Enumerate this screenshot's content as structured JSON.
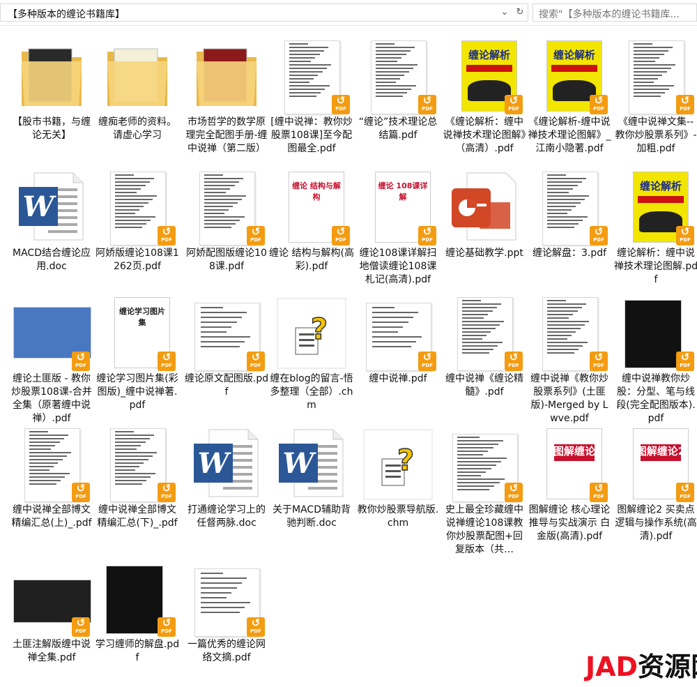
{
  "address_bar": {
    "path": "【多种版本的缠论书籍库】",
    "dropdown_icon": "chevron-down-icon",
    "refresh_icon": "refresh-icon"
  },
  "search": {
    "placeholder": "搜索\"【多种版本的缠论书籍库..."
  },
  "files": [
    {
      "name": "【股市书籍，与缠论无关】",
      "type": "folder"
    },
    {
      "name": "缠痴老师的资料。请虚心学习",
      "type": "folder"
    },
    {
      "name": "市场哲学的数学原理完全配图手册-缠中说禅（第二版）",
      "type": "folder"
    },
    {
      "name": "[缠中说禅：教你炒股票108课]至今配图最全.pdf",
      "type": "pdf"
    },
    {
      "name": "“缠论”技术理论总结篇.pdf",
      "type": "pdf"
    },
    {
      "name": "《缠论解析：缠中说禅技术理论图解》（高清）.pdf",
      "type": "pdf",
      "cover_title": "缠论解析"
    },
    {
      "name": "《缠论解析-缠中说禅技术理论图解》_江南小隐著.pdf",
      "type": "pdf",
      "cover_title": "缠论解析"
    },
    {
      "name": "《缠中说禅文集--教你炒股票系列》-加粗.pdf",
      "type": "pdf"
    },
    {
      "name": "MACD结合缠论应用.doc",
      "type": "doc"
    },
    {
      "name": "阿娇版缠论108课1262页.pdf",
      "type": "pdf"
    },
    {
      "name": "阿娇配图版缠论108课.pdf",
      "type": "pdf"
    },
    {
      "name": "缠论 结构与解构(高彩).pdf",
      "type": "pdf",
      "cover_title": "缠论 结构与解构"
    },
    {
      "name": "缠论108课详解扫地僧读缠论108课札记(高清).pdf",
      "type": "pdf",
      "cover_title": "缠论 108课详解"
    },
    {
      "name": "缠论基础教学.ppt",
      "type": "ppt"
    },
    {
      "name": "缠论解盘：3.pdf",
      "type": "pdf"
    },
    {
      "name": "缠论解析：缠中说禅技术理论图解.pdf",
      "type": "pdf",
      "cover_title": "缠论解析"
    },
    {
      "name": "缠论土匪版 - 教你炒股票108课-合并全集（原著缠中说禅）.pdf",
      "type": "pdf"
    },
    {
      "name": "缠论学习图片集(彩图版)_缠中说禅著.pdf",
      "type": "pdf",
      "cover_title": "缠论学习图片集"
    },
    {
      "name": "缠论原文配图版.pdf",
      "type": "pdf"
    },
    {
      "name": "缠在blog的留言-悟多整理（全部）.chm",
      "type": "chm"
    },
    {
      "name": "缠中说禅.pdf",
      "type": "pdf"
    },
    {
      "name": "缠中说禅《缠论精髓》.pdf",
      "type": "pdf"
    },
    {
      "name": "缠中说禅《教你炒股票系列》(土匪版)-Merged by Lwve.pdf",
      "type": "pdf"
    },
    {
      "name": "缠中说禅教你炒股：分型、笔与线段(完全配图版本).pdf",
      "type": "pdf"
    },
    {
      "name": "缠中说禅全部博文精编汇总(上)_.pdf",
      "type": "pdf"
    },
    {
      "name": "缠中说禅全部博文精编汇总(下)_.pdf",
      "type": "pdf"
    },
    {
      "name": "打通缠论学习上的任督两脉.doc",
      "type": "doc"
    },
    {
      "name": "关于MACD辅助背驰判断.doc",
      "type": "doc"
    },
    {
      "name": "教你炒股票导航版.chm",
      "type": "chm"
    },
    {
      "name": "史上最全珍藏缠中说禅缠论108课教你炒股票配图+回复版本（共…",
      "type": "pdf"
    },
    {
      "name": "图解缠论 核心理论推导与实战演示 白金版(高清).pdf",
      "type": "pdf",
      "cover_title": "图解缠论"
    },
    {
      "name": "图解缠论2 买卖点逻辑与操作系统(高清).pdf",
      "type": "pdf",
      "cover_title": "图解缠论2"
    },
    {
      "name": "土匪注解版缠中说禅全集.pdf",
      "type": "pdf"
    },
    {
      "name": "学习缠师的解盘.pdf",
      "type": "pdf"
    },
    {
      "name": "一篇优秀的缠论网络文摘.pdf",
      "type": "pdf"
    }
  ],
  "watermark": {
    "text": "资源网",
    "logo": "JAD"
  },
  "colors": {
    "pdf_badge": "#f39c12",
    "word_blue": "#2b5797",
    "ppt_orange": "#d24726",
    "cover_yellow": "#f2e600",
    "cover_red": "#c8102e"
  }
}
